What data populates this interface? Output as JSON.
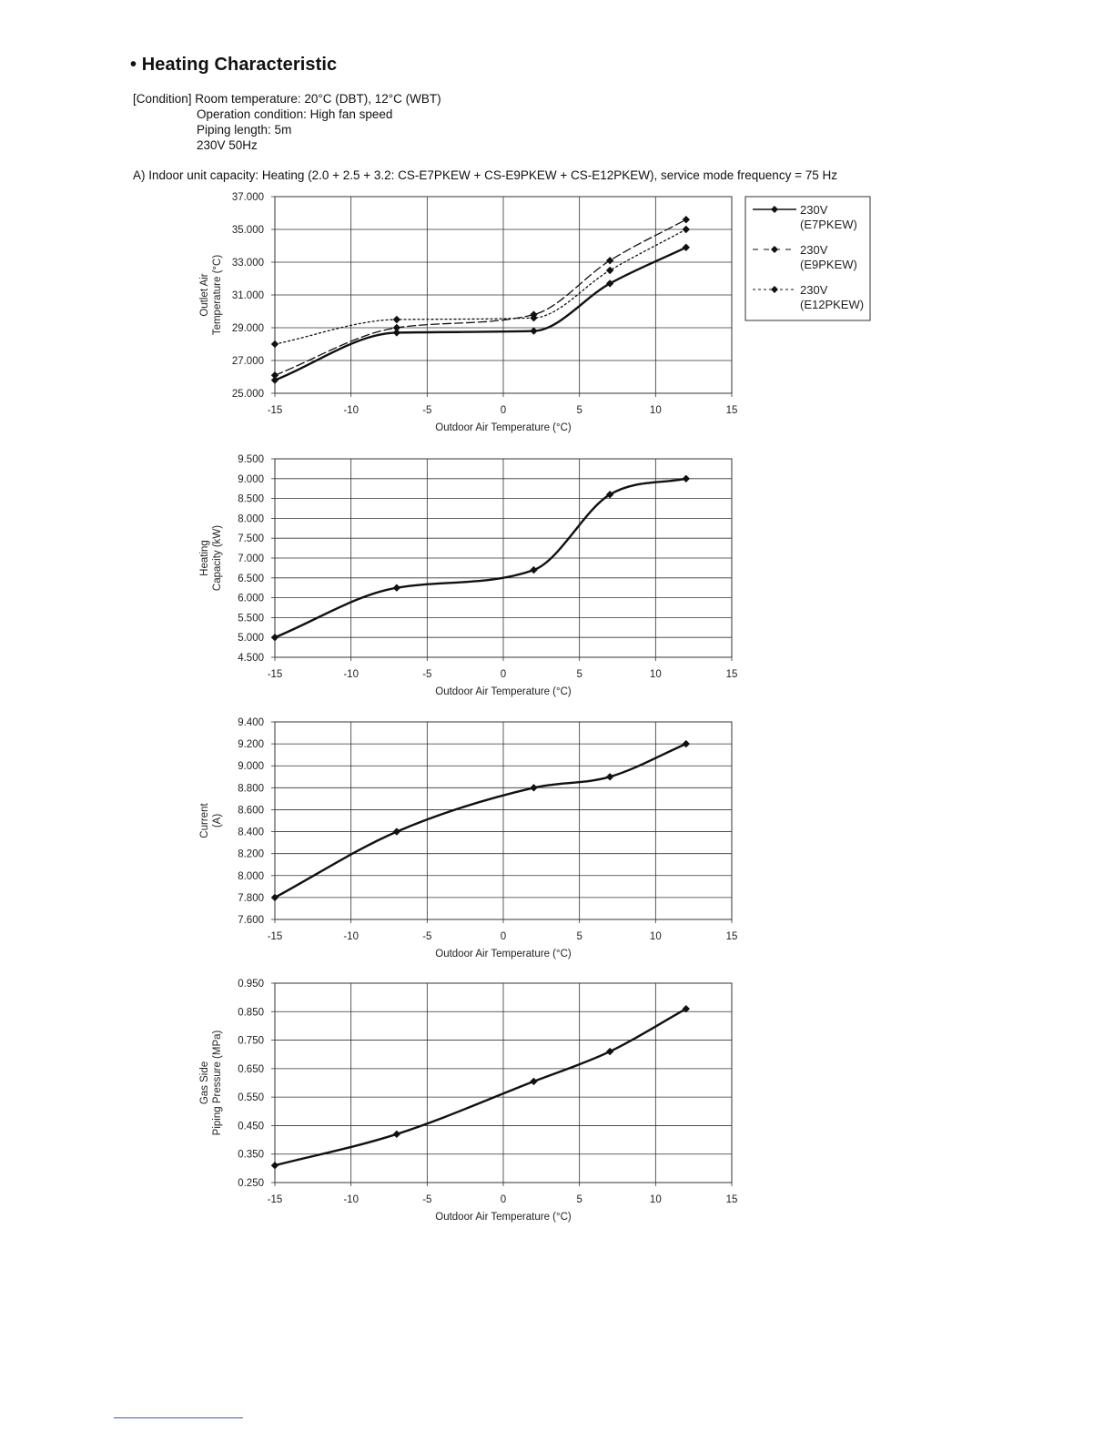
{
  "heading": "• Heating Characteristic",
  "conditions": [
    "[Condition] Room temperature: 20°C (DBT), 12°C (WBT)",
    "Operation condition: High fan speed",
    "Piping length: 5m",
    "230V  50Hz"
  ],
  "caption": "A) Indoor unit capacity: Heating (2.0 + 2.5 + 3.2: CS-E7PKEW + CS-E9PKEW + CS-E12PKEW), service mode frequency = 75 Hz",
  "colors": {
    "line": "#111111",
    "grid": "#333333",
    "background": "#ffffff"
  },
  "chart_data": [
    {
      "type": "line",
      "xlabel": "Outdoor Air Temperature (°C)",
      "ylabel": [
        "Outlet Air",
        "Temperature (°C)"
      ],
      "xlim": [
        -15,
        15
      ],
      "ylim": [
        25,
        37
      ],
      "xticks": [
        "-15",
        "-10",
        "-5",
        "0",
        "5",
        "10",
        "15"
      ],
      "yticks": [
        "25.000",
        "27.000",
        "29.000",
        "31.000",
        "33.000",
        "35.000",
        "37.000"
      ],
      "x": [
        -15,
        -7,
        2,
        7,
        12
      ],
      "grid": true,
      "legend_position": "right",
      "series": [
        {
          "name": [
            "230V",
            "(E7PKEW)"
          ],
          "style": "solid",
          "values": [
            25.8,
            28.7,
            28.8,
            31.7,
            33.9
          ]
        },
        {
          "name": [
            "230V",
            "(E9PKEW)"
          ],
          "style": "dashed",
          "values": [
            26.1,
            29.0,
            29.8,
            33.1,
            35.6
          ]
        },
        {
          "name": [
            "230V",
            "(E12PKEW)"
          ],
          "style": "dotted",
          "values": [
            28.0,
            29.5,
            29.6,
            32.5,
            35.0
          ]
        }
      ]
    },
    {
      "type": "line",
      "xlabel": "Outdoor Air Temperature (°C)",
      "ylabel": [
        "Heating",
        "Capacity (kW)"
      ],
      "xlim": [
        -15,
        15
      ],
      "ylim": [
        4.5,
        9.5
      ],
      "xticks": [
        "-15",
        "-10",
        "-5",
        "0",
        "5",
        "10",
        "15"
      ],
      "yticks": [
        "4.500",
        "5.000",
        "5.500",
        "6.000",
        "6.500",
        "7.000",
        "7.500",
        "8.000",
        "8.500",
        "9.000",
        "9.500"
      ],
      "x": [
        -15,
        -7,
        2,
        7,
        12
      ],
      "grid": true,
      "series": [
        {
          "style": "solid",
          "values": [
            5.0,
            6.25,
            6.7,
            8.6,
            9.0
          ]
        }
      ]
    },
    {
      "type": "line",
      "xlabel": "Outdoor Air Temperature (°C)",
      "ylabel": [
        "Current",
        "(A)"
      ],
      "xlim": [
        -15,
        15
      ],
      "ylim": [
        7.6,
        9.4
      ],
      "xticks": [
        "-15",
        "-10",
        "-5",
        "0",
        "5",
        "10",
        "15"
      ],
      "yticks": [
        "7.600",
        "7.800",
        "8.000",
        "8.200",
        "8.400",
        "8.600",
        "8.800",
        "9.000",
        "9.200",
        "9.400"
      ],
      "x": [
        -15,
        -7,
        2,
        7,
        12
      ],
      "grid": true,
      "series": [
        {
          "style": "solid",
          "values": [
            7.8,
            8.4,
            8.8,
            8.9,
            9.2
          ]
        }
      ]
    },
    {
      "type": "line",
      "xlabel": "Outdoor Air Temperature (°C)",
      "ylabel": [
        "Gas Side",
        "Piping Pressure (MPa)"
      ],
      "xlim": [
        -15,
        15
      ],
      "ylim": [
        0.25,
        0.95
      ],
      "xticks": [
        "-15",
        "-10",
        "-5",
        "0",
        "5",
        "10",
        "15"
      ],
      "yticks": [
        "0.250",
        "0.350",
        "0.450",
        "0.550",
        "0.650",
        "0.750",
        "0.850",
        "0.950"
      ],
      "x": [
        -15,
        -7,
        2,
        7,
        12
      ],
      "grid": true,
      "series": [
        {
          "style": "solid",
          "values": [
            0.31,
            0.42,
            0.605,
            0.71,
            0.86
          ]
        }
      ]
    }
  ]
}
